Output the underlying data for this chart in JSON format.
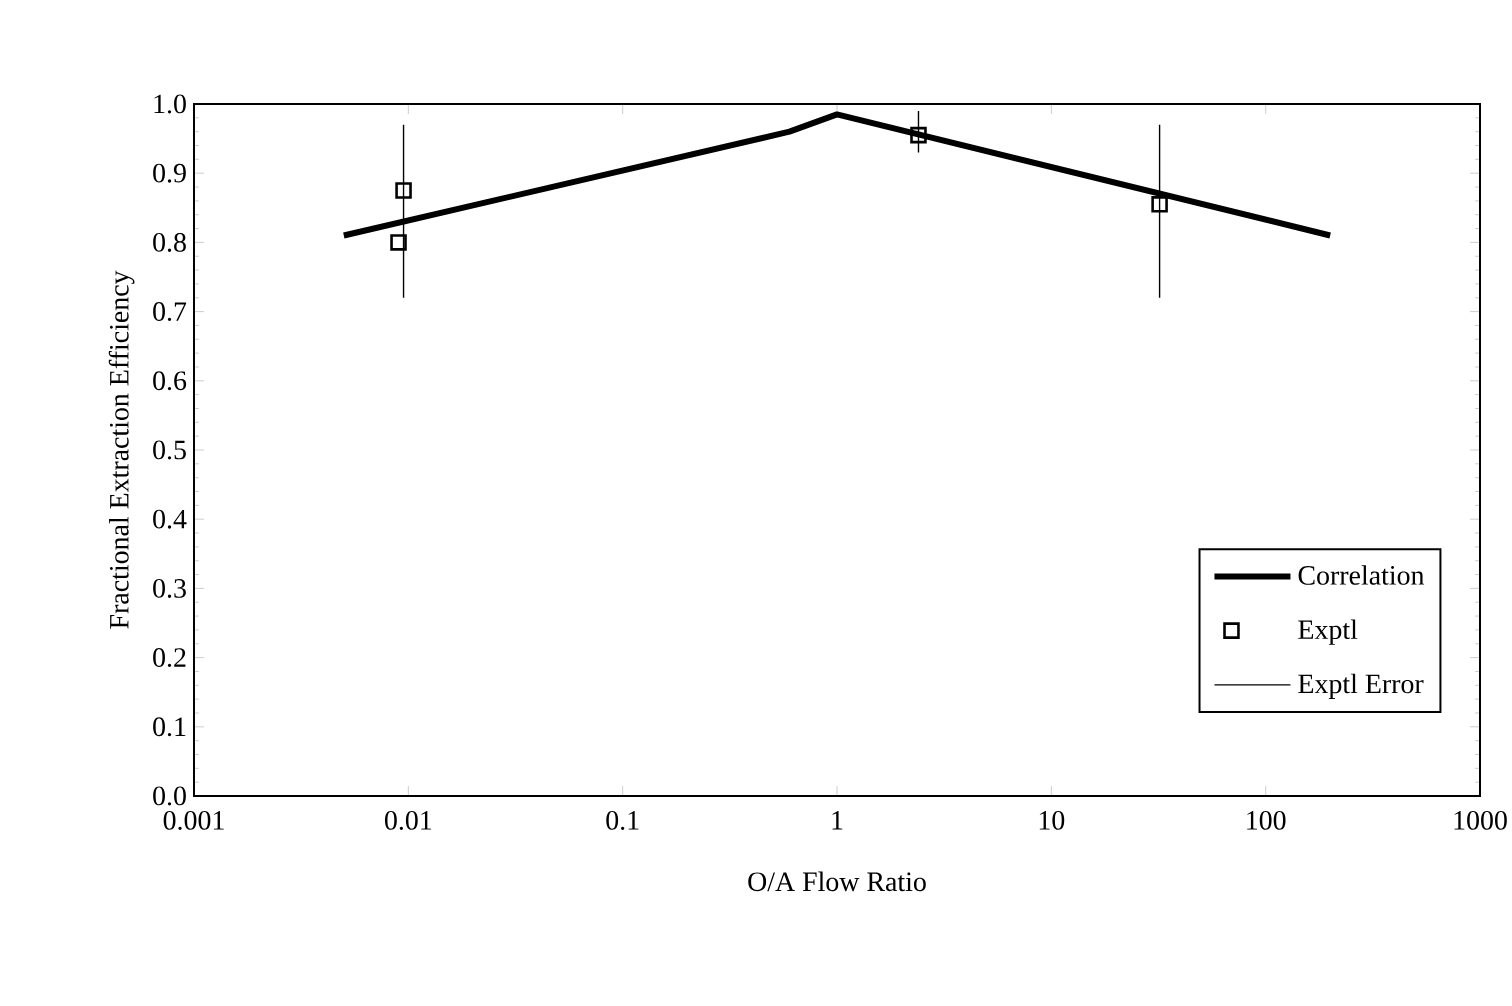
{
  "chart_data": {
    "type": "line",
    "xlabel": "O/A Flow Ratio",
    "ylabel": "Fractional Extraction Efficiency",
    "log": "x",
    "xlim": [
      0.001,
      1000
    ],
    "ylim": [
      0,
      1
    ],
    "xticks": [
      0.001,
      0.01,
      0.1,
      1,
      10,
      100,
      1000
    ],
    "yticks": [
      {
        "value": 0,
        "label": "0.0"
      },
      {
        "value": 0.1,
        "label": "0.1"
      },
      {
        "value": 0.2,
        "label": "0.2"
      },
      {
        "value": 0.3,
        "label": "0.3"
      },
      {
        "value": 0.4,
        "label": "0.4"
      },
      {
        "value": 0.5,
        "label": "0.5"
      },
      {
        "value": 0.6,
        "label": "0.6"
      },
      {
        "value": 0.7,
        "label": "0.7"
      },
      {
        "value": 0.8,
        "label": "0.8"
      },
      {
        "value": 0.9,
        "label": "0.9"
      },
      {
        "value": 1,
        "label": "1.0"
      }
    ],
    "grid": false,
    "legend": "bottom right",
    "series": [
      {
        "name": "Correlation",
        "type": "line",
        "color": "#000000",
        "marker": "none",
        "line_style": "solid",
        "x": [
          0.005,
          0.6,
          1,
          200
        ],
        "values": [
          0.81,
          0.96,
          0.985,
          0.81
        ]
      },
      {
        "name": "Exptl",
        "type": "scatter",
        "color": "#000000",
        "marker": "square",
        "x": [
          0.009,
          0.0095,
          2.4,
          32
        ],
        "values": [
          0.8,
          0.875,
          0.955,
          0.855
        ]
      },
      {
        "name": "Exptl Error",
        "type": "line",
        "color": "#000000",
        "marker": "none",
        "line_style": "solid",
        "x": [
          0.0095,
          0.0095,
          null,
          2.4,
          2.4,
          null,
          32,
          32,
          null
        ],
        "values": [
          0.72,
          0.97,
          null,
          0.93,
          0.99,
          null,
          0.72,
          0.97,
          null
        ]
      }
    ]
  }
}
